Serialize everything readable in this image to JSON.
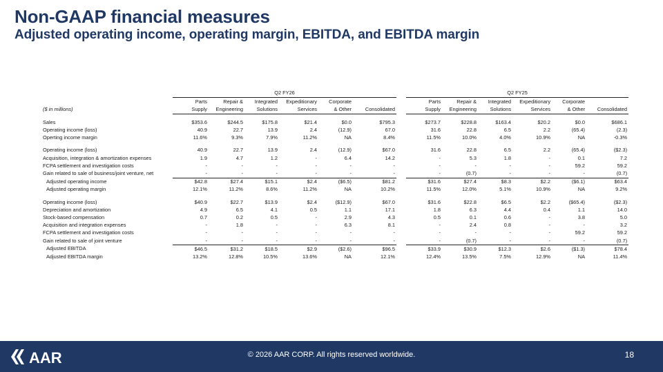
{
  "title": "Non-GAAP financial measures",
  "subtitle": "Adjusted operating income, operating margin, EBITDA, and EBITDA margin",
  "table": {
    "units_label": "($ in millions)",
    "periods": [
      "Q2 FY26",
      "Q2 FY25"
    ],
    "col_line1": [
      "Parts",
      "Repair &",
      "Integrated",
      "Expeditionary",
      "Corporate",
      ""
    ],
    "col_line2": [
      "Supply",
      "Engineering",
      "Solutions",
      "Services",
      "& Other",
      "Consolidated"
    ],
    "rows": [
      {
        "label": "Sales",
        "fy26": [
          "$353.6",
          "$244.5",
          "$175.8",
          "$21.4",
          "$0.0",
          "$795.3"
        ],
        "fy25": [
          "$273.7",
          "$228.8",
          "$163.4",
          "$20.2",
          "$0.0",
          "$686.1"
        ]
      },
      {
        "label": "Operating income (loss)",
        "fy26": [
          "40.9",
          "22.7",
          "13.9",
          "2.4",
          "(12.9)",
          "67.0"
        ],
        "fy25": [
          "31.6",
          "22.8",
          "6.5",
          "2.2",
          "(65.4)",
          "(2.3)"
        ]
      },
      {
        "label": "Operting income margin",
        "fy26": [
          "11.6%",
          "9.3%",
          "7.9%",
          "11.2%",
          "NA",
          "8.4%"
        ],
        "fy25": [
          "11.5%",
          "10.0%",
          "4.0%",
          "10.9%",
          "NA",
          "-0.3%"
        ]
      },
      {
        "label": "Operating income (loss)",
        "fy26": [
          "40.9",
          "22.7",
          "13.9",
          "2.4",
          "(12.9)",
          "$67.0"
        ],
        "fy25": [
          "31.6",
          "22.8",
          "6.5",
          "2.2",
          "(65.4)",
          "($2.3)"
        ]
      },
      {
        "label": "Acquisition, integration & amortization expenses",
        "fy26": [
          "1.9",
          "4.7",
          "1.2",
          "-",
          "6.4",
          "14.2"
        ],
        "fy25": [
          "-",
          "5.3",
          "1.8",
          "-",
          "0.1",
          "7.2"
        ]
      },
      {
        "label": "FCPA settlement and investigation costs",
        "fy26": [
          "-",
          "-",
          "-",
          "-",
          "-",
          "-"
        ],
        "fy25": [
          "-",
          "-",
          "-",
          "-",
          "59.2",
          "59.2"
        ]
      },
      {
        "label": "Gain related to sale of business/joint venture, net",
        "fy26": [
          "-",
          "-",
          "-",
          "-",
          "-",
          "-"
        ],
        "fy25": [
          "-",
          "(0.7)",
          "-",
          "-",
          "-",
          "(0.7)"
        ]
      },
      {
        "label": "Adjusted operating income",
        "fy26": [
          "$42.8",
          "$27.4",
          "$15.1",
          "$2.4",
          "($6.5)",
          "$81.2"
        ],
        "fy25": [
          "$31.6",
          "$27.4",
          "$8.3",
          "$2.2",
          "($6.1)",
          "$63.4"
        ]
      },
      {
        "label": "Adjusted operating margin",
        "fy26": [
          "12.1%",
          "11.2%",
          "8.6%",
          "11.2%",
          "NA",
          "10.2%"
        ],
        "fy25": [
          "11.5%",
          "12.0%",
          "5.1%",
          "10.9%",
          "NA",
          "9.2%"
        ]
      },
      {
        "label": "Operating income (loss)",
        "fy26": [
          "$40.9",
          "$22.7",
          "$13.9",
          "$2.4",
          "($12.9)",
          "$67.0"
        ],
        "fy25": [
          "$31.6",
          "$22.8",
          "$6.5",
          "$2.2",
          "($65.4)",
          "($2.3)"
        ]
      },
      {
        "label": "Depreciation and amortization",
        "fy26": [
          "4.9",
          "6.5",
          "4.1",
          "0.5",
          "1.1",
          "17.1"
        ],
        "fy25": [
          "1.8",
          "6.3",
          "4.4",
          "0.4",
          "1.1",
          "14.0"
        ]
      },
      {
        "label": "Stock-based compensation",
        "fy26": [
          "0.7",
          "0.2",
          "0.5",
          "-",
          "2.9",
          "4.3"
        ],
        "fy25": [
          "0.5",
          "0.1",
          "0.6",
          "-",
          "3.8",
          "5.0"
        ]
      },
      {
        "label": "Acquisition and integration expenses",
        "fy26": [
          "-",
          "1.8",
          "-",
          "-",
          "6.3",
          "8.1"
        ],
        "fy25": [
          "-",
          "2.4",
          "0.8",
          "-",
          "-",
          "3.2"
        ]
      },
      {
        "label": "FCPA settlement and investigation costs",
        "fy26": [
          "-",
          "-",
          "-",
          "-",
          "-",
          "-"
        ],
        "fy25": [
          "-",
          "-",
          "-",
          "-",
          "59.2",
          "59.2"
        ]
      },
      {
        "label": "Gain related to sale of joint venture",
        "fy26": [
          "-",
          "-",
          "-",
          "-",
          "-",
          "-"
        ],
        "fy25": [
          "-",
          "(0.7)",
          "-",
          "-",
          "-",
          "(0.7)"
        ]
      },
      {
        "label": "Adjusted EBITDA",
        "fy26": [
          "$46.5",
          "$31.2",
          "$18.5",
          "$2.9",
          "($2.6)",
          "$96.5"
        ],
        "fy25": [
          "$33.9",
          "$30.9",
          "$12.3",
          "$2.6",
          "($1.3)",
          "$78.4"
        ]
      },
      {
        "label": "Adjusted EBITDA margin",
        "fy26": [
          "13.2%",
          "12.8%",
          "10.5%",
          "13.6%",
          "NA",
          "12.1%"
        ],
        "fy25": [
          "12.4%",
          "13.5%",
          "7.5%",
          "12.9%",
          "NA",
          "11.4%"
        ]
      }
    ]
  },
  "footer": {
    "logo_text": "AAR",
    "copyright": "© 2026 AAR CORP. All rights reserved worldwide.",
    "page_number": "18"
  },
  "colors": {
    "brand_navy": "#1f3864",
    "text": "#1a1a1a"
  }
}
